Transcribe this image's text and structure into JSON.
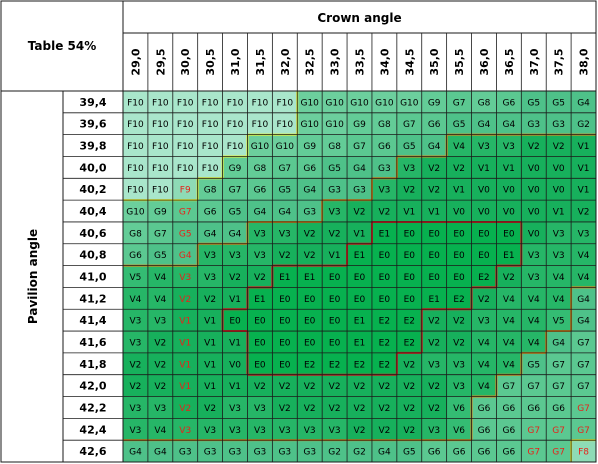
{
  "chart_data": {
    "type": "heatmap",
    "title": "Table 54%",
    "xlabel": "Crown angle",
    "ylabel": "Pavilion angle",
    "x": [
      "29,0",
      "29,5",
      "30,0",
      "30,5",
      "31,0",
      "31,5",
      "32,0",
      "32,5",
      "33,0",
      "33,5",
      "34,0",
      "34,5",
      "35,0",
      "35,5",
      "36,0",
      "36,5",
      "37,0",
      "37,5",
      "38,0"
    ],
    "y": [
      "39,4",
      "39,6",
      "39,8",
      "40,0",
      "40,2",
      "40,4",
      "40,6",
      "40,8",
      "41,0",
      "41,2",
      "41,4",
      "41,6",
      "41,8",
      "42,0",
      "42,2",
      "42,4",
      "42,6"
    ],
    "grades": [
      [
        "F10",
        "F10",
        "F10",
        "F10",
        "F10",
        "F10",
        "F10",
        "G10",
        "G10",
        "G10",
        "G10",
        "G10",
        "G9",
        "G7",
        "G8",
        "G6",
        "G5",
        "G5",
        "G4"
      ],
      [
        "F10",
        "F10",
        "F10",
        "F10",
        "F10",
        "F10",
        "F10",
        "G10",
        "G10",
        "G9",
        "G8",
        "G7",
        "G6",
        "G5",
        "G4",
        "G4",
        "G3",
        "G3",
        "G2"
      ],
      [
        "F10",
        "F10",
        "F10",
        "F10",
        "F10",
        "G10",
        "G10",
        "G9",
        "G8",
        "G7",
        "G6",
        "G5",
        "G4",
        "V4",
        "V3",
        "V3",
        "V2",
        "V2",
        "V1"
      ],
      [
        "F10",
        "F10",
        "F10",
        "F10",
        "G9",
        "G8",
        "G7",
        "G6",
        "G5",
        "G4",
        "G3",
        "V3",
        "V2",
        "V2",
        "V1",
        "V1",
        "V0",
        "V0",
        "V1"
      ],
      [
        "F10",
        "F10",
        "F9",
        "G8",
        "G7",
        "G6",
        "G5",
        "G4",
        "G3",
        "G3",
        "V3",
        "V2",
        "V2",
        "V1",
        "V0",
        "V0",
        "V0",
        "V0",
        "V1"
      ],
      [
        "G10",
        "G9",
        "G7",
        "G6",
        "G5",
        "G4",
        "G4",
        "G3",
        "V3",
        "V2",
        "V2",
        "V1",
        "V1",
        "V0",
        "V0",
        "V0",
        "V0",
        "V1",
        "V2"
      ],
      [
        "G8",
        "G7",
        "G5",
        "G4",
        "G4",
        "V3",
        "V3",
        "V2",
        "V2",
        "V1",
        "E1",
        "E0",
        "E0",
        "E0",
        "E0",
        "E0",
        "V0",
        "V3",
        "V3"
      ],
      [
        "G6",
        "G5",
        "G4",
        "V3",
        "V3",
        "V3",
        "V2",
        "V2",
        "V1",
        "E1",
        "E0",
        "E0",
        "E0",
        "E0",
        "E0",
        "E1",
        "V3",
        "V3",
        "V4"
      ],
      [
        "V5",
        "V4",
        "V3",
        "V3",
        "V2",
        "V2",
        "E1",
        "E1",
        "E0",
        "E0",
        "E0",
        "E0",
        "E0",
        "E0",
        "E2",
        "V2",
        "V3",
        "V4",
        "V4"
      ],
      [
        "V4",
        "V4",
        "V2",
        "V2",
        "V1",
        "E1",
        "E0",
        "E0",
        "E0",
        "E0",
        "E0",
        "E0",
        "E1",
        "E2",
        "V2",
        "V4",
        "V4",
        "V4",
        "G4"
      ],
      [
        "V3",
        "V3",
        "V1",
        "V1",
        "E0",
        "E0",
        "E0",
        "E0",
        "E0",
        "E1",
        "E2",
        "E2",
        "V2",
        "V2",
        "V3",
        "V4",
        "V4",
        "V5",
        "G4"
      ],
      [
        "V3",
        "V2",
        "V1",
        "V1",
        "V1",
        "E0",
        "E0",
        "E0",
        "E0",
        "E1",
        "E2",
        "E2",
        "V2",
        "V2",
        "V4",
        "V4",
        "V4",
        "G4",
        "G7"
      ],
      [
        "V2",
        "V2",
        "V1",
        "V1",
        "V0",
        "E0",
        "E0",
        "E2",
        "E2",
        "E2",
        "E2",
        "V2",
        "V3",
        "V3",
        "V4",
        "V4",
        "G5",
        "G7",
        "G7"
      ],
      [
        "V2",
        "V2",
        "V1",
        "V1",
        "V1",
        "V2",
        "V2",
        "V2",
        "V2",
        "V2",
        "V2",
        "V2",
        "V2",
        "V3",
        "V4",
        "G7",
        "G7",
        "G7",
        "G7"
      ],
      [
        "V3",
        "V3",
        "V2",
        "V2",
        "V3",
        "V3",
        "V2",
        "V2",
        "V2",
        "V2",
        "V2",
        "V2",
        "V2",
        "V6",
        "G6",
        "G6",
        "G6",
        "G6",
        "G7"
      ],
      [
        "V3",
        "V4",
        "V3",
        "V3",
        "V3",
        "V3",
        "V3",
        "V3",
        "V3",
        "V2",
        "V2",
        "V2",
        "V3",
        "V6",
        "G6",
        "G6",
        "G7",
        "G7",
        "G7"
      ],
      [
        "G4",
        "G4",
        "G3",
        "G3",
        "G3",
        "G3",
        "G3",
        "G3",
        "G2",
        "G2",
        "G4",
        "G5",
        "G6",
        "G6",
        "G6",
        "G6",
        "G7",
        "G7",
        "F8"
      ]
    ],
    "red_text_cells": [
      [
        4,
        2
      ],
      [
        5,
        2
      ],
      [
        6,
        2
      ],
      [
        7,
        2
      ],
      [
        8,
        2
      ],
      [
        9,
        2
      ],
      [
        10,
        2
      ],
      [
        11,
        2
      ],
      [
        12,
        2
      ],
      [
        13,
        2
      ],
      [
        14,
        2
      ],
      [
        15,
        2
      ],
      [
        15,
        16
      ],
      [
        15,
        17
      ],
      [
        15,
        18
      ],
      [
        16,
        16
      ],
      [
        16,
        17
      ],
      [
        16,
        18
      ],
      [
        14,
        18
      ]
    ],
    "colors": {
      "F": "#a6e4c8",
      "G": "#55c98e",
      "V": "#16b35d",
      "E": "#05b04f",
      "header_bg": "#ffffff",
      "grid": "#000000",
      "red_text": "#e5241b",
      "boundary_yellow": "#e6f03a",
      "boundary_orange": "#d4891c",
      "boundary_red": "#d61d1d"
    }
  }
}
